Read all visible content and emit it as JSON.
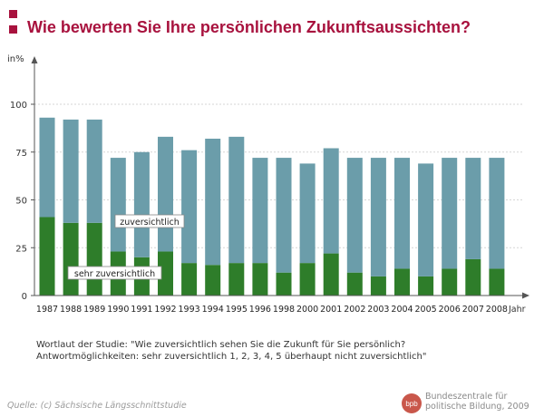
{
  "title": "Wie bewerten Sie Ihre persönlichen Zukunftsaussichten?",
  "colors": {
    "accent": "#a8123e",
    "zuversichtlich": "#6b9daa",
    "sehr_zuversichtlich": "#2e7d2a"
  },
  "chart_data": {
    "type": "bar",
    "stacked": true,
    "unit_label": "in%",
    "x_axis_label": "Jahr",
    "ylim": [
      0,
      100
    ],
    "yticks": [
      0,
      25,
      50,
      75,
      100
    ],
    "grid": true,
    "categories": [
      "1987",
      "1988",
      "1989",
      "1990",
      "1991",
      "1992",
      "1993",
      "1994",
      "1995",
      "1996",
      "1998",
      "2000",
      "2001",
      "2002",
      "2003",
      "2004",
      "2005",
      "2006",
      "2007",
      "2008"
    ],
    "series": [
      {
        "name": "sehr zuversichtlich",
        "values": [
          41,
          38,
          38,
          23,
          20,
          23,
          17,
          16,
          17,
          17,
          12,
          17,
          22,
          12,
          10,
          14,
          10,
          14,
          19,
          14
        ]
      },
      {
        "name": "zuversichtlich",
        "values": [
          52,
          54,
          54,
          49,
          55,
          60,
          59,
          66,
          66,
          55,
          60,
          52,
          55,
          60,
          62,
          58,
          59,
          58,
          53,
          58
        ]
      }
    ]
  },
  "note": {
    "line1": "Wortlaut der Studie: \"Wie zuversichtlich sehen Sie die Zukunft für Sie persönlich?",
    "line2": "Antwortmöglichkeiten: sehr zuversichtlich 1, 2, 3, 4, 5 überhaupt nicht zuversichtlich\""
  },
  "source": "Quelle: (c) Sächsische Längsschnittstudie",
  "publisher": {
    "logo_text": "bpb",
    "line1": "Bundeszentrale für",
    "line2": "politische Bildung, 2009"
  }
}
